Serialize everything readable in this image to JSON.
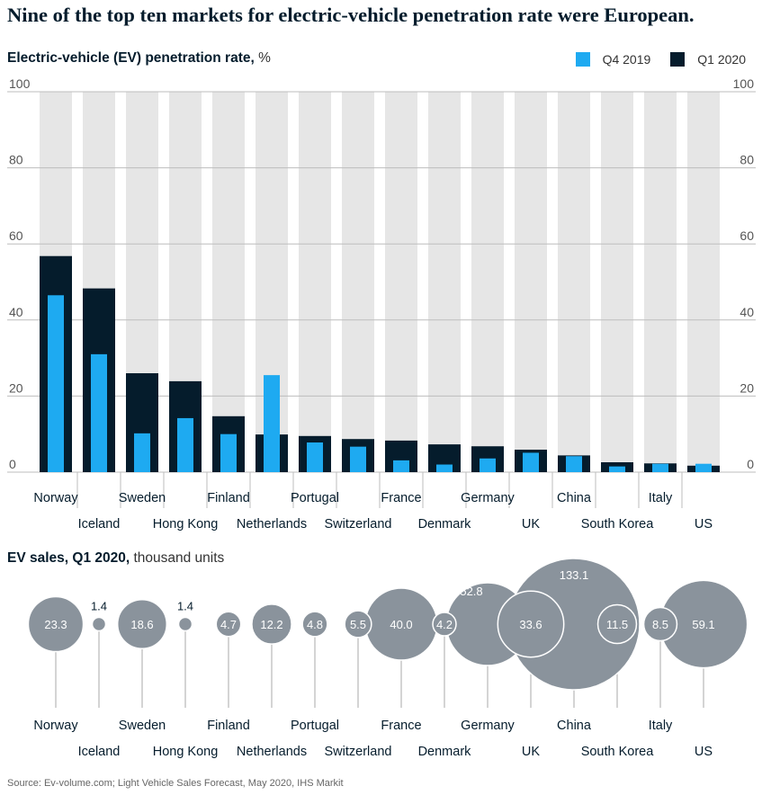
{
  "headline": "Nine of the top ten markets for electric-vehicle penetration rate were European.",
  "colors": {
    "q4_2019": "#1eaaf1",
    "q1_2020": "#051c2c",
    "column_bg": "#e6e6e6",
    "bubble": "#8a939c",
    "grid": "#bdbdbd"
  },
  "chart_data": [
    {
      "type": "bar",
      "title": "Electric-vehicle (EV) penetration rate,",
      "unit": "%",
      "ylim": [
        0,
        100
      ],
      "yticks": [
        "0",
        "20",
        "40",
        "60",
        "80",
        "100"
      ],
      "grid": true,
      "legend_position": "top-right",
      "categories": [
        "Norway",
        "Iceland",
        "Sweden",
        "Hong Kong",
        "Finland",
        "Netherlands",
        "Portugal",
        "Switzerland",
        "France",
        "Denmark",
        "Germany",
        "UK",
        "China",
        "South Korea",
        "Italy",
        "US"
      ],
      "series": [
        {
          "name": "Q4 2019",
          "values": [
            46.5,
            31,
            10.2,
            14.2,
            10,
            25.5,
            7.8,
            6.7,
            3.1,
            2,
            3.6,
            5.1,
            4.2,
            1.5,
            2.2,
            2.2
          ]
        },
        {
          "name": "Q1 2020",
          "values": [
            56.8,
            48.3,
            26,
            23.9,
            14.7,
            9.9,
            9.5,
            8.7,
            8.3,
            7.3,
            6.8,
            5.9,
            4.4,
            2.6,
            2.3,
            1.7
          ]
        }
      ]
    },
    {
      "type": "scatter",
      "title": "EV sales, Q1 2020,",
      "unit": "thousand units",
      "categories": [
        "Norway",
        "Iceland",
        "Sweden",
        "Hong Kong",
        "Finland",
        "Netherlands",
        "Portugal",
        "Switzerland",
        "France",
        "Denmark",
        "Germany",
        "UK",
        "China",
        "South Korea",
        "Italy",
        "US"
      ],
      "values": [
        23.3,
        1.4,
        18.6,
        1.4,
        4.7,
        12.2,
        4.8,
        5.5,
        40.0,
        4.2,
        52.8,
        33.6,
        133.1,
        11.5,
        8.5,
        59.1
      ],
      "labels": [
        "23.3",
        "1.4",
        "18.6",
        "1.4",
        "4.7",
        "12.2",
        "4.8",
        "5.5",
        "40.0",
        "4.2",
        "52.8",
        "33.6",
        "133.1",
        "11.5",
        "8.5",
        "59.1"
      ]
    }
  ],
  "source": "Source: Ev-volume.com; Light Vehicle Sales Forecast, May 2020, IHS Markit"
}
